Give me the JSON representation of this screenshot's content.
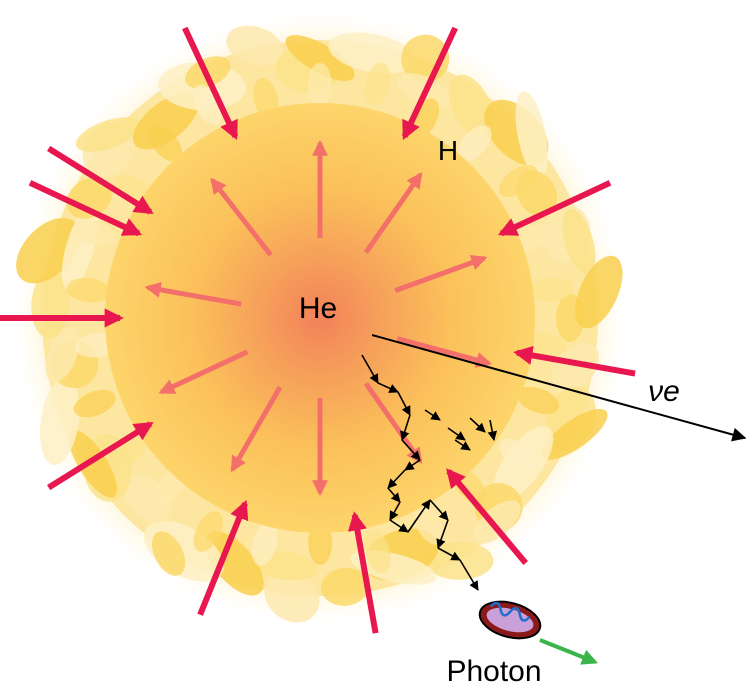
{
  "labels": {
    "core": "He",
    "shell": "H",
    "neutrino": "νe",
    "photon": "Photon"
  },
  "colors": {
    "inward_arrow": "#e8174f",
    "outward_arrow": "#f26f6a",
    "neutrino_arrow": "#000000",
    "photon_arrow": "#39b54a",
    "photon_body": "#8b1a1a",
    "photon_wave": "#1e90ff",
    "core": "#f28b5a",
    "shell": "#ffe59a"
  }
}
